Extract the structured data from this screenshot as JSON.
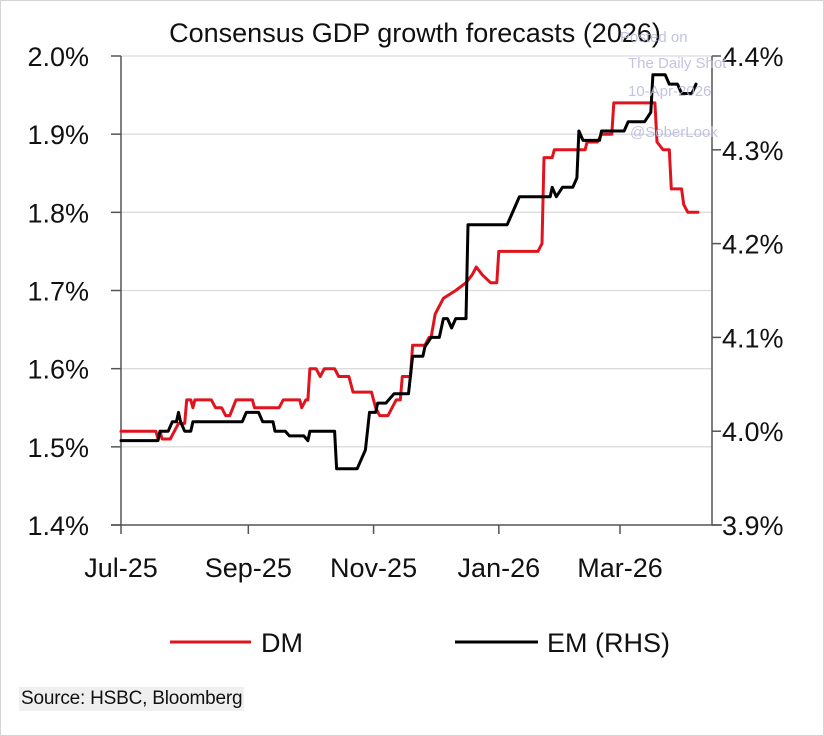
{
  "chart_data": {
    "type": "line",
    "title": "Consensus GDP growth forecasts (2026)",
    "xlabel": "",
    "ylabel": "",
    "x_start": "2025-07-01",
    "x_end": "2026-04-12",
    "x_ticks": [
      {
        "date": "2025-07-01",
        "label": "Jul-25"
      },
      {
        "date": "2025-09-01",
        "label": "Sep-25"
      },
      {
        "date": "2025-11-01",
        "label": "Nov-25"
      },
      {
        "date": "2026-01-01",
        "label": "Jan-26"
      },
      {
        "date": "2026-03-01",
        "label": "Mar-26"
      }
    ],
    "y_left": {
      "range": [
        1.4,
        2.0
      ],
      "ticks": [
        1.4,
        1.5,
        1.6,
        1.7,
        1.8,
        1.9,
        2.0
      ],
      "tick_labels": [
        "1.4%",
        "1.5%",
        "1.6%",
        "1.7%",
        "1.8%",
        "1.9%",
        "2.0%"
      ]
    },
    "y_right": {
      "range": [
        3.9,
        4.4
      ],
      "ticks": [
        3.9,
        4.0,
        4.1,
        4.2,
        4.3,
        4.4
      ],
      "tick_labels": [
        "3.9%",
        "4.0%",
        "4.1%",
        "4.2%",
        "4.3%",
        "4.4%"
      ]
    },
    "grid": "horizontal",
    "legend_position": "bottom",
    "series": [
      {
        "name": "DM",
        "axis": "left",
        "color": "#e0141e",
        "points": [
          [
            "2025-07-01",
            1.52
          ],
          [
            "2025-07-18",
            1.52
          ],
          [
            "2025-07-19",
            1.51
          ],
          [
            "2025-07-20",
            1.52
          ],
          [
            "2025-07-21",
            1.51
          ],
          [
            "2025-07-25",
            1.51
          ],
          [
            "2025-07-27",
            1.52
          ],
          [
            "2025-07-29",
            1.53
          ],
          [
            "2025-08-01",
            1.53
          ],
          [
            "2025-08-02",
            1.56
          ],
          [
            "2025-08-04",
            1.56
          ],
          [
            "2025-08-05",
            1.55
          ],
          [
            "2025-08-06",
            1.56
          ],
          [
            "2025-08-14",
            1.56
          ],
          [
            "2025-08-16",
            1.55
          ],
          [
            "2025-08-19",
            1.55
          ],
          [
            "2025-08-21",
            1.54
          ],
          [
            "2025-08-23",
            1.54
          ],
          [
            "2025-08-26",
            1.56
          ],
          [
            "2025-09-03",
            1.56
          ],
          [
            "2025-09-04",
            1.55
          ],
          [
            "2025-09-16",
            1.55
          ],
          [
            "2025-09-18",
            1.56
          ],
          [
            "2025-09-26",
            1.56
          ],
          [
            "2025-09-27",
            1.55
          ],
          [
            "2025-09-29",
            1.56
          ],
          [
            "2025-09-30",
            1.56
          ],
          [
            "2025-10-01",
            1.6
          ],
          [
            "2025-10-04",
            1.6
          ],
          [
            "2025-10-06",
            1.59
          ],
          [
            "2025-10-08",
            1.6
          ],
          [
            "2025-10-13",
            1.6
          ],
          [
            "2025-10-15",
            1.59
          ],
          [
            "2025-10-20",
            1.59
          ],
          [
            "2025-10-22",
            1.57
          ],
          [
            "2025-10-31",
            1.57
          ],
          [
            "2025-11-02",
            1.55
          ],
          [
            "2025-11-04",
            1.54
          ],
          [
            "2025-11-08",
            1.54
          ],
          [
            "2025-11-10",
            1.55
          ],
          [
            "2025-11-12",
            1.56
          ],
          [
            "2025-11-14",
            1.56
          ],
          [
            "2025-11-15",
            1.59
          ],
          [
            "2025-11-19",
            1.59
          ],
          [
            "2025-11-20",
            1.63
          ],
          [
            "2025-11-26",
            1.63
          ],
          [
            "2025-11-28",
            1.64
          ],
          [
            "2025-11-29",
            1.64
          ],
          [
            "2025-12-01",
            1.67
          ],
          [
            "2025-12-05",
            1.69
          ],
          [
            "2025-12-11",
            1.7
          ],
          [
            "2025-12-16",
            1.71
          ],
          [
            "2025-12-19",
            1.72
          ],
          [
            "2025-12-21",
            1.73
          ],
          [
            "2025-12-24",
            1.72
          ],
          [
            "2025-12-28",
            1.71
          ],
          [
            "2025-12-31",
            1.71
          ],
          [
            "2026-01-01",
            1.75
          ],
          [
            "2026-01-20",
            1.75
          ],
          [
            "2026-01-22",
            1.76
          ],
          [
            "2026-01-23",
            1.87
          ],
          [
            "2026-01-27",
            1.87
          ],
          [
            "2026-01-28",
            1.88
          ],
          [
            "2026-02-12",
            1.88
          ],
          [
            "2026-02-13",
            1.89
          ],
          [
            "2026-02-18",
            1.89
          ],
          [
            "2026-02-20",
            1.9
          ],
          [
            "2026-02-25",
            1.9
          ],
          [
            "2026-02-26",
            1.94
          ],
          [
            "2026-03-18",
            1.94
          ],
          [
            "2026-03-19",
            1.89
          ],
          [
            "2026-03-22",
            1.88
          ],
          [
            "2026-03-25",
            1.88
          ],
          [
            "2026-03-26",
            1.83
          ],
          [
            "2026-03-31",
            1.83
          ],
          [
            "2026-04-01",
            1.81
          ],
          [
            "2026-04-03",
            1.8
          ],
          [
            "2026-04-08",
            1.8
          ]
        ]
      },
      {
        "name": "EM (RHS)",
        "axis": "right",
        "color": "#000000",
        "points": [
          [
            "2025-07-01",
            3.99
          ],
          [
            "2025-07-19",
            3.99
          ],
          [
            "2025-07-20",
            4.0
          ],
          [
            "2025-07-24",
            4.0
          ],
          [
            "2025-07-26",
            4.01
          ],
          [
            "2025-07-28",
            4.01
          ],
          [
            "2025-07-29",
            4.02
          ],
          [
            "2025-07-30",
            4.01
          ],
          [
            "2025-08-01",
            4.0
          ],
          [
            "2025-08-04",
            4.0
          ],
          [
            "2025-08-05",
            4.01
          ],
          [
            "2025-08-29",
            4.01
          ],
          [
            "2025-08-31",
            4.02
          ],
          [
            "2025-09-06",
            4.02
          ],
          [
            "2025-09-08",
            4.01
          ],
          [
            "2025-09-13",
            4.01
          ],
          [
            "2025-09-14",
            4.0
          ],
          [
            "2025-09-19",
            4.0
          ],
          [
            "2025-09-21",
            3.995
          ],
          [
            "2025-09-28",
            3.995
          ],
          [
            "2025-09-30",
            3.99
          ],
          [
            "2025-10-01",
            4.0
          ],
          [
            "2025-10-13",
            4.0
          ],
          [
            "2025-10-14",
            3.96
          ],
          [
            "2025-10-24",
            3.96
          ],
          [
            "2025-10-26",
            3.97
          ],
          [
            "2025-10-28",
            3.98
          ],
          [
            "2025-10-30",
            4.02
          ],
          [
            "2025-11-02",
            4.02
          ],
          [
            "2025-11-03",
            4.03
          ],
          [
            "2025-11-07",
            4.03
          ],
          [
            "2025-11-11",
            4.04
          ],
          [
            "2025-11-18",
            4.04
          ],
          [
            "2025-11-20",
            4.08
          ],
          [
            "2025-11-25",
            4.08
          ],
          [
            "2025-11-26",
            4.09
          ],
          [
            "2025-11-29",
            4.1
          ],
          [
            "2025-12-03",
            4.1
          ],
          [
            "2025-12-05",
            4.12
          ],
          [
            "2025-12-07",
            4.12
          ],
          [
            "2025-12-09",
            4.11
          ],
          [
            "2025-12-11",
            4.12
          ],
          [
            "2025-12-16",
            4.12
          ],
          [
            "2025-12-17",
            4.22
          ],
          [
            "2026-01-05",
            4.22
          ],
          [
            "2026-01-07",
            4.23
          ],
          [
            "2026-01-09",
            4.24
          ],
          [
            "2026-01-11",
            4.25
          ],
          [
            "2026-01-26",
            4.25
          ],
          [
            "2026-01-27",
            4.26
          ],
          [
            "2026-01-29",
            4.25
          ],
          [
            "2026-02-01",
            4.26
          ],
          [
            "2026-02-06",
            4.26
          ],
          [
            "2026-02-08",
            4.27
          ],
          [
            "2026-02-09",
            4.32
          ],
          [
            "2026-02-11",
            4.31
          ],
          [
            "2026-02-19",
            4.31
          ],
          [
            "2026-02-20",
            4.32
          ],
          [
            "2026-03-03",
            4.32
          ],
          [
            "2026-03-05",
            4.33
          ],
          [
            "2026-03-13",
            4.33
          ],
          [
            "2026-03-16",
            4.34
          ],
          [
            "2026-03-17",
            4.38
          ],
          [
            "2026-03-23",
            4.38
          ],
          [
            "2026-03-25",
            4.37
          ],
          [
            "2026-03-29",
            4.37
          ],
          [
            "2026-03-31",
            4.36
          ],
          [
            "2026-04-05",
            4.36
          ],
          [
            "2026-04-07",
            4.37
          ]
        ]
      }
    ]
  },
  "legend": {
    "items": [
      {
        "label": "DM",
        "color": "#e0141e"
      },
      {
        "label": "EM (RHS)",
        "color": "#000000"
      }
    ]
  },
  "source": "Source: HSBC, Bloomberg",
  "watermark": {
    "lines": [
      "Posted on",
      "The Daily Shot",
      "10-Apr-2026",
      "@SoberLook"
    ]
  }
}
